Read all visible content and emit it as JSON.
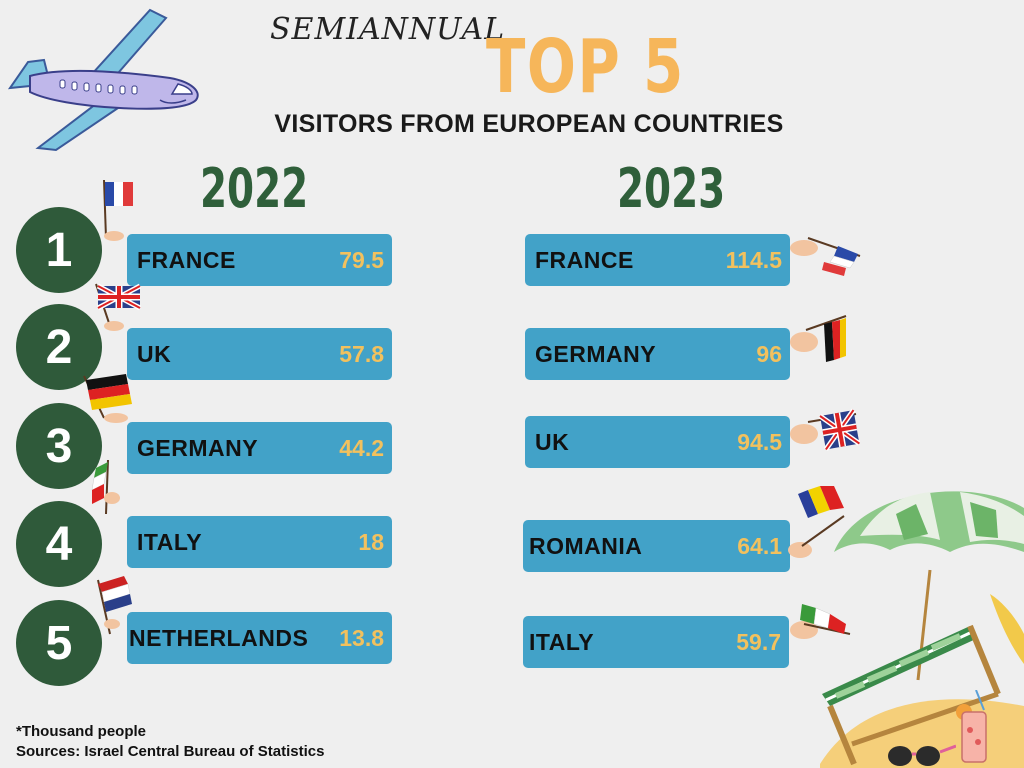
{
  "header": {
    "script_title": "SEMIANNUAL",
    "top_title": "TOP 5",
    "subtitle": "VISITORS FROM EUROPEAN COUNTRIES"
  },
  "years": {
    "left": "2022",
    "right": "2023"
  },
  "ranks": [
    "1",
    "2",
    "3",
    "4",
    "5"
  ],
  "left_list": [
    {
      "country": "FRANCE",
      "value": "79.5"
    },
    {
      "country": "UK",
      "value": "57.8"
    },
    {
      "country": "GERMANY",
      "value": "44.2"
    },
    {
      "country": "ITALY",
      "value": "18"
    },
    {
      "country": "NETHERLANDS",
      "value": "13.8"
    }
  ],
  "right_list": [
    {
      "country": "FRANCE",
      "value": "114.5"
    },
    {
      "country": "GERMANY",
      "value": "96"
    },
    {
      "country": "UK",
      "value": "94.5"
    },
    {
      "country": "ROMANIA",
      "value": "64.1"
    },
    {
      "country": "ITALY",
      "value": "59.7"
    }
  ],
  "footer": {
    "note": "*Thousand people",
    "source": "Sources: Israel Central Bureau of Statistics"
  },
  "colors": {
    "background": "#efefef",
    "bar": "#42a2c8",
    "value_text": "#f2c15e",
    "rank_circle": "#2f5a3a",
    "year_text": "#2f5f3a",
    "top_title": "#f6b65a"
  },
  "icons": [
    "airplane-icon",
    "france-flag-icon",
    "uk-flag-icon",
    "germany-flag-icon",
    "italy-flag-icon",
    "netherlands-flag-icon",
    "romania-flag-icon",
    "beach-umbrella-icon",
    "beach-chair-icon",
    "drink-icon",
    "sunglasses-icon"
  ]
}
